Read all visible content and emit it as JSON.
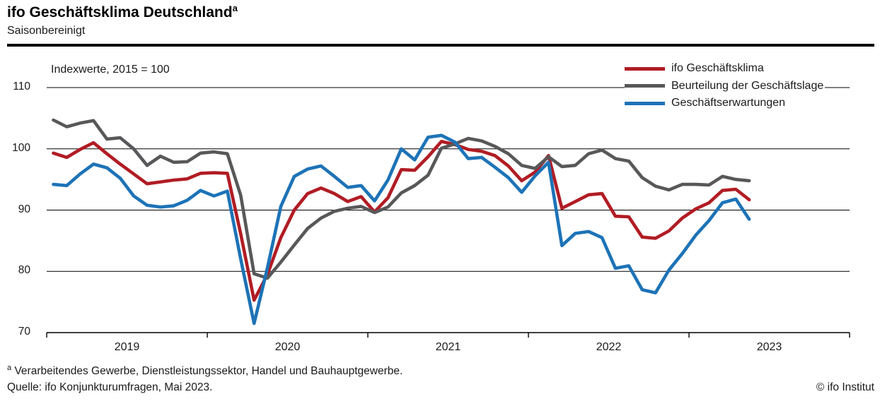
{
  "header": {
    "title": "ifo Geschäftsklima Deutschland",
    "title_superscript": "a",
    "subtitle": "Saisonbereinigt"
  },
  "chart": {
    "annotation": "Indexwerte, 2015 = 100",
    "y_ticks": [
      110,
      100,
      90,
      80,
      70
    ],
    "x_year_labels": [
      "2019",
      "2020",
      "2021",
      "2022",
      "2023"
    ]
  },
  "chart_data": {
    "type": "line",
    "title": "ifo Geschäftsklima Deutschland (Saisonbereinigt)",
    "annotation": "Indexwerte, 2015 = 100",
    "ylim": [
      70,
      110
    ],
    "grid": "horizontal",
    "legend_position": "top-right",
    "x_unit": "month",
    "months": [
      "2019-01",
      "2019-02",
      "2019-03",
      "2019-04",
      "2019-05",
      "2019-06",
      "2019-07",
      "2019-08",
      "2019-09",
      "2019-10",
      "2019-11",
      "2019-12",
      "2020-01",
      "2020-02",
      "2020-03",
      "2020-04",
      "2020-05",
      "2020-06",
      "2020-07",
      "2020-08",
      "2020-09",
      "2020-10",
      "2020-11",
      "2020-12",
      "2021-01",
      "2021-02",
      "2021-03",
      "2021-04",
      "2021-05",
      "2021-06",
      "2021-07",
      "2021-08",
      "2021-09",
      "2021-10",
      "2021-11",
      "2021-12",
      "2022-01",
      "2022-02",
      "2022-03",
      "2022-04",
      "2022-05",
      "2022-06",
      "2022-07",
      "2022-08",
      "2022-09",
      "2022-10",
      "2022-11",
      "2022-12",
      "2023-01",
      "2023-02",
      "2023-03",
      "2023-04",
      "2023-05"
    ],
    "series": [
      {
        "name": "ifo Geschäftsklima",
        "color": "#b11c24",
        "values": [
          99.3,
          98.6,
          99.9,
          101.0,
          99.2,
          97.5,
          95.9,
          94.3,
          94.6,
          94.9,
          95.1,
          96.0,
          96.1,
          96.0,
          86.1,
          75.3,
          79.5,
          85.5,
          90.0,
          92.7,
          93.6,
          92.7,
          91.4,
          92.2,
          89.7,
          92.0,
          96.6,
          96.5,
          98.7,
          101.2,
          100.7,
          99.9,
          99.6,
          98.9,
          97.2,
          94.8,
          96.2,
          98.9,
          90.3,
          91.4,
          92.5,
          92.7,
          89.0,
          88.9,
          85.6,
          85.4,
          86.6,
          88.7,
          90.2,
          91.2,
          93.2,
          93.4,
          91.7
        ]
      },
      {
        "name": "Beurteilung der Geschäftslage",
        "color": "#58585a",
        "values": [
          104.7,
          103.6,
          104.2,
          104.6,
          101.6,
          101.8,
          100.0,
          97.3,
          98.8,
          97.8,
          97.9,
          99.3,
          99.5,
          99.2,
          92.4,
          79.6,
          78.9,
          81.5,
          84.3,
          87.0,
          88.7,
          89.8,
          90.3,
          90.6,
          89.6,
          90.5,
          92.8,
          94.0,
          95.7,
          100.1,
          100.8,
          101.7,
          101.3,
          100.4,
          99.2,
          97.3,
          96.8,
          98.7,
          97.1,
          97.3,
          99.2,
          99.8,
          98.4,
          98.0,
          95.3,
          93.9,
          93.3,
          94.2,
          94.2,
          94.1,
          95.5,
          95.0,
          94.8
        ]
      },
      {
        "name": "Geschäftserwartungen",
        "color": "#1d73b7",
        "values": [
          94.2,
          94.0,
          95.9,
          97.5,
          96.9,
          95.2,
          92.3,
          90.8,
          90.5,
          90.7,
          91.6,
          93.2,
          92.3,
          93.1,
          82.0,
          71.5,
          80.6,
          90.6,
          95.5,
          96.7,
          97.2,
          95.5,
          93.7,
          94.0,
          91.5,
          94.9,
          100.0,
          98.2,
          101.9,
          102.2,
          101.1,
          98.4,
          98.6,
          97.0,
          95.3,
          92.9,
          95.6,
          97.8,
          84.2,
          86.2,
          86.5,
          85.5,
          80.5,
          80.9,
          77.0,
          76.5,
          80.2,
          82.9,
          85.9,
          88.3,
          91.2,
          91.8,
          88.5
        ]
      }
    ]
  },
  "footer": {
    "note_superscript": "a",
    "note": "Verarbeitendes Gewerbe, Dienstleistungssektor, Handel und Bauhauptgewerbe.",
    "source": "Quelle: ifo Konjunkturumfragen, Mai 2023.",
    "copyright": "© ifo Institut"
  }
}
